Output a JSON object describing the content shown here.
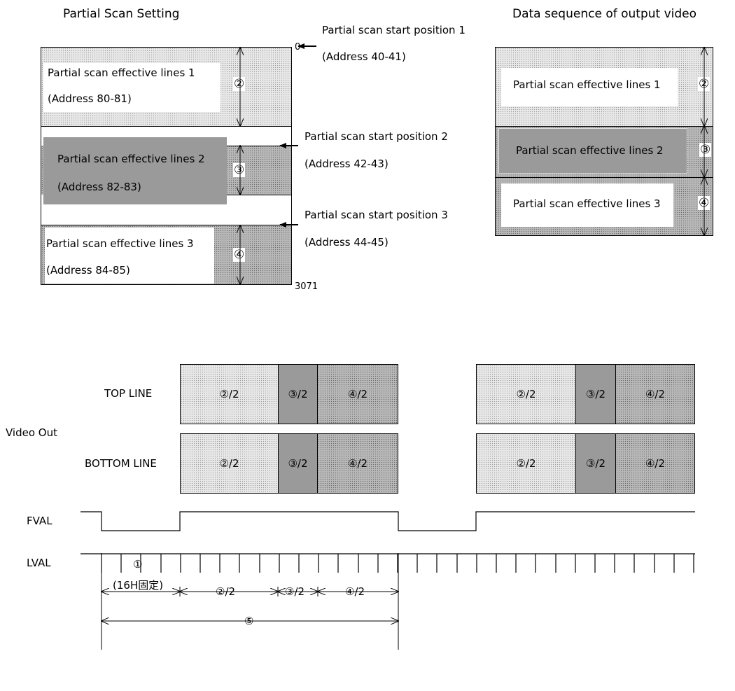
{
  "left": {
    "title": "Partial Scan Setting",
    "start_marker": "0",
    "end_marker": "3071",
    "region1": {
      "label": "Partial scan effective lines 1",
      "address": "(Address 80-81)",
      "marker": "②"
    },
    "region2": {
      "label": "Partial scan effective lines 2",
      "address": "(Address 82-83)",
      "marker": "③"
    },
    "region3": {
      "label": "Partial scan effective lines 3",
      "address": "(Address 84-85)",
      "marker": "④"
    },
    "start1": {
      "label": "Partial scan start position 1",
      "address": "(Address 40-41)"
    },
    "start2": {
      "label": "Partial scan start position 2",
      "address": "(Address 42-43)"
    },
    "start3": {
      "label": "Partial scan start position 3",
      "address": "(Address 44-45)"
    }
  },
  "right": {
    "title": "Data sequence of output video",
    "region1": {
      "label": "Partial scan effective lines 1",
      "marker": "②"
    },
    "region2": {
      "label": "Partial scan effective lines 2",
      "marker": "③"
    },
    "region3": {
      "label": "Partial scan effective lines 3",
      "marker": "④"
    }
  },
  "timing": {
    "video_out": "Video Out",
    "top_line": "TOP LINE",
    "bottom_line": "BOTTOM LINE",
    "seg2": "②/2",
    "seg3": "③/2",
    "seg4": "④/2",
    "fval": "FVAL",
    "lval": "LVAL",
    "dim1": "①",
    "dim1_note": "(16H固定)",
    "dim2": "②/2",
    "dim3": "③/2",
    "dim4": "④/2",
    "dim5": "⑤"
  }
}
